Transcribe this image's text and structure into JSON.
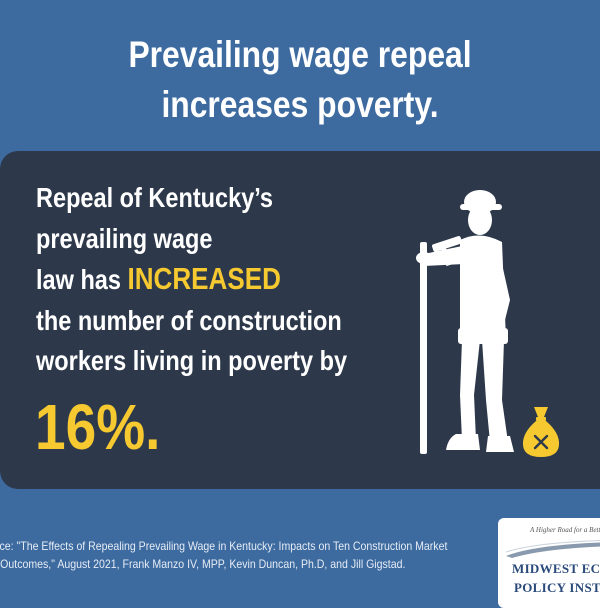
{
  "headline": {
    "line1": "Prevailing wage repeal",
    "line2": "increases poverty."
  },
  "message": {
    "line1": "Repeal of Kentucky’s",
    "line2": "prevailing wage",
    "line3_prefix": "law has ",
    "line3_highlight": "INCREASED",
    "line4": "the number of construction",
    "line5": "workers living in poverty by",
    "figure": "16%."
  },
  "source": {
    "line1": "rce: \"The Effects of Repealing Prevailing Wage in Kentucky: Impacts on Ten Construction Market",
    "line2": "Outcomes,\" August 2021, Frank Manzo IV, MPP, Kevin Duncan, Ph.D, and Jill Gigstad."
  },
  "logo": {
    "tagline": "A Higher Road for a Better",
    "line1": "MIDWEST ECO",
    "line2": "POLICY INST"
  },
  "icons": {
    "worker": "construction-worker-with-hammer-silhouette-icon",
    "money_bag": "money-bag-x-icon"
  },
  "colors": {
    "background": "#3d6ba0",
    "panel": "#2d394b",
    "highlight": "#f6c930",
    "text": "#ffffff"
  }
}
